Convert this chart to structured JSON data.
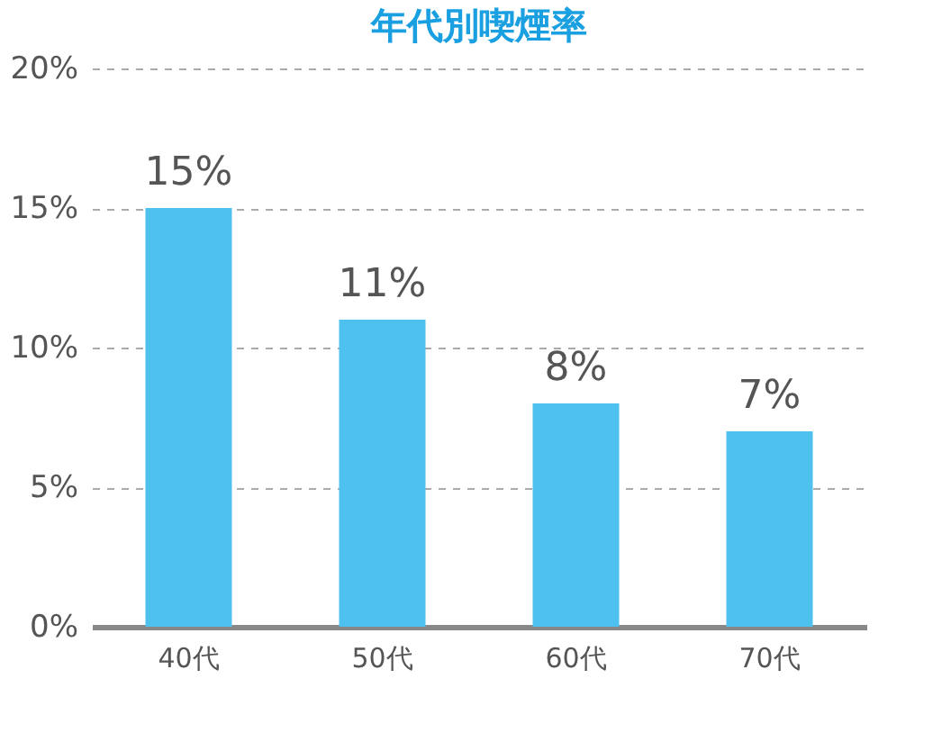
{
  "chart_data": {
    "type": "bar",
    "title": "年代別喫煙率",
    "categories": [
      "40代",
      "50代",
      "60代",
      "70代"
    ],
    "values": [
      15,
      11,
      8,
      7
    ],
    "value_labels": [
      "15%",
      "11%",
      "8%",
      "7%"
    ],
    "color": "#4fc1ef",
    "ylim": [
      0,
      20
    ],
    "yticks": [
      {
        "value": 0,
        "label": "0%"
      },
      {
        "value": 5,
        "label": "5%"
      },
      {
        "value": 10,
        "label": "10%"
      },
      {
        "value": 15,
        "label": "15%"
      },
      {
        "value": 20,
        "label": "20%"
      }
    ],
    "grid": "y"
  }
}
